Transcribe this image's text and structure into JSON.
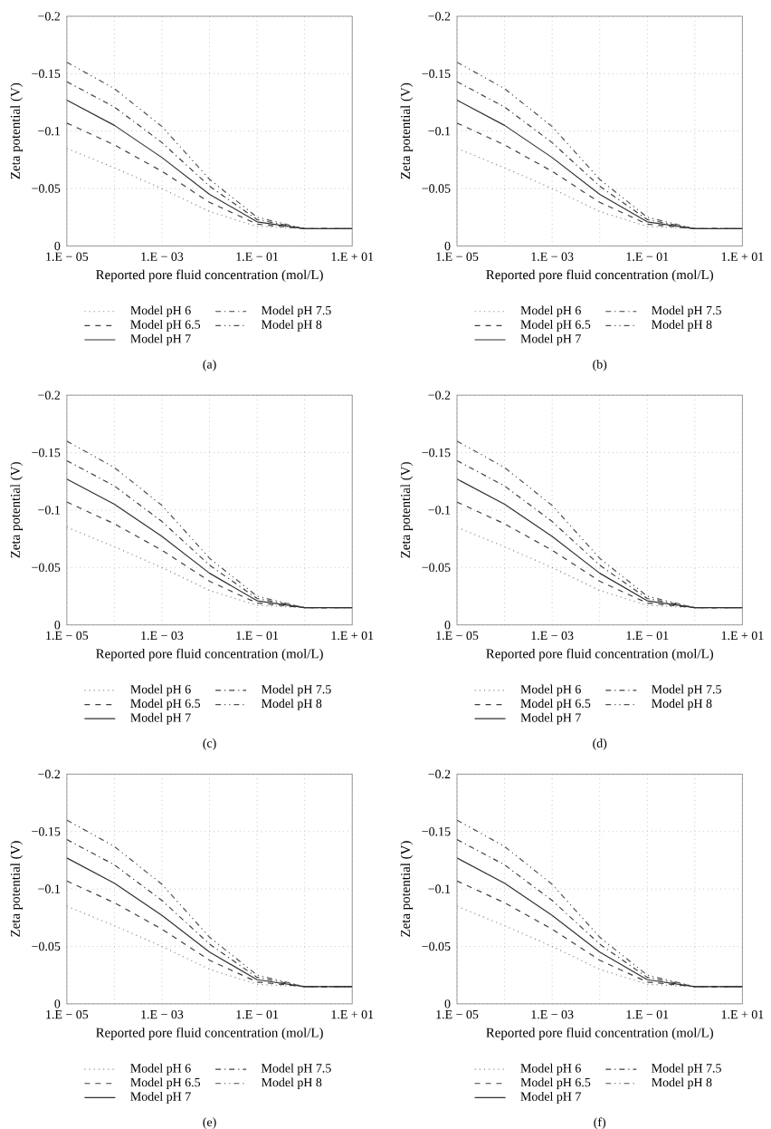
{
  "chart_data": [
    {
      "type": "line",
      "xlabel": "Reported pore fluid concentration (mol/L)",
      "ylabel": "Zeta potential (V)",
      "annotations": [
        "(a)"
      ],
      "grid": true,
      "legend": "bottom",
      "categories": [
        "1.E − 05",
        null,
        "1.E − 03",
        null,
        "1.E − 01",
        null,
        "1.E + 01"
      ],
      "ylim": [
        0,
        -0.2
      ],
      "yticks": [
        {
          "value": 0,
          "label": "0"
        },
        {
          "value": -0.05,
          "label": "−0.05"
        },
        {
          "value": -0.1,
          "label": "−0.1"
        },
        {
          "value": -0.15,
          "label": "−0.15"
        },
        {
          "value": -0.2,
          "label": "−0.2"
        }
      ],
      "series": [
        {
          "name": "Model pH 6",
          "color": "#8c8c8c",
          "line_style": "dotted",
          "values": [
            -0.085,
            -0.068,
            -0.05,
            -0.03,
            -0.017,
            -0.015,
            -0.015
          ]
        },
        {
          "name": "Model pH 6.5",
          "color": "#404040",
          "line_style": "dashed",
          "values": [
            -0.107,
            -0.088,
            -0.065,
            -0.038,
            -0.019,
            -0.015,
            -0.015
          ]
        },
        {
          "name": "Model pH 7",
          "color": "#303030",
          "line_style": "solid",
          "values": [
            -0.127,
            -0.105,
            -0.077,
            -0.045,
            -0.021,
            -0.015,
            -0.015
          ]
        },
        {
          "name": "Model pH 7.5",
          "color": "#404040",
          "line_style": "dashdot",
          "values": [
            -0.143,
            -0.121,
            -0.09,
            -0.052,
            -0.023,
            -0.015,
            -0.015
          ]
        },
        {
          "name": "Model pH 8",
          "color": "#505050",
          "line_style": "dashdotdot",
          "values": [
            -0.16,
            -0.137,
            -0.104,
            -0.058,
            -0.025,
            -0.015,
            -0.015
          ]
        }
      ]
    },
    {
      "type": "line",
      "xlabel": "Reported pore fluid concentration (mol/L)",
      "ylabel": "Zeta potential (V)",
      "annotations": [
        "(b)"
      ],
      "grid": true,
      "legend": "bottom",
      "categories": [
        "1.E − 05",
        null,
        "1.E − 03",
        null,
        "1.E − 01",
        null,
        "1.E + 01"
      ],
      "ylim": [
        0,
        -0.2
      ],
      "yticks": [
        {
          "value": 0,
          "label": "0"
        },
        {
          "value": -0.05,
          "label": "−0.05"
        },
        {
          "value": -0.1,
          "label": "−0.1"
        },
        {
          "value": -0.15,
          "label": "−0.15"
        },
        {
          "value": -0.2,
          "label": "−0.2"
        }
      ],
      "series": [
        {
          "name": "Model pH 6",
          "color": "#8c8c8c",
          "line_style": "dotted",
          "values": [
            -0.085,
            -0.068,
            -0.05,
            -0.03,
            -0.017,
            -0.015,
            -0.015
          ]
        },
        {
          "name": "Model pH 6.5",
          "color": "#404040",
          "line_style": "dashed",
          "values": [
            -0.107,
            -0.088,
            -0.065,
            -0.038,
            -0.019,
            -0.015,
            -0.015
          ]
        },
        {
          "name": "Model pH 7",
          "color": "#303030",
          "line_style": "solid",
          "values": [
            -0.127,
            -0.105,
            -0.077,
            -0.045,
            -0.021,
            -0.015,
            -0.015
          ]
        },
        {
          "name": "Model pH 7.5",
          "color": "#404040",
          "line_style": "dashdot",
          "values": [
            -0.143,
            -0.121,
            -0.09,
            -0.052,
            -0.023,
            -0.015,
            -0.015
          ]
        },
        {
          "name": "Model pH 8",
          "color": "#505050",
          "line_style": "dashdotdot",
          "values": [
            -0.16,
            -0.137,
            -0.104,
            -0.058,
            -0.025,
            -0.015,
            -0.015
          ]
        }
      ]
    },
    {
      "type": "line",
      "xlabel": "Reported pore fluid concentration (mol/L)",
      "ylabel": "Zeta potential (V)",
      "annotations": [
        "(c)"
      ],
      "grid": true,
      "legend": "bottom",
      "categories": [
        "1.E − 05",
        null,
        "1.E − 03",
        null,
        "1.E − 01",
        null,
        "1.E + 01"
      ],
      "ylim": [
        0,
        -0.2
      ],
      "yticks": [
        {
          "value": 0,
          "label": "0"
        },
        {
          "value": -0.05,
          "label": "−0.05"
        },
        {
          "value": -0.1,
          "label": "−0.1"
        },
        {
          "value": -0.15,
          "label": "−0.15"
        },
        {
          "value": -0.2,
          "label": "−0.2"
        }
      ],
      "series": [
        {
          "name": "Model pH 6",
          "color": "#8c8c8c",
          "line_style": "dotted",
          "values": [
            -0.085,
            -0.068,
            -0.05,
            -0.03,
            -0.017,
            -0.015,
            -0.015
          ]
        },
        {
          "name": "Model pH 6.5",
          "color": "#404040",
          "line_style": "dashed",
          "values": [
            -0.107,
            -0.088,
            -0.065,
            -0.038,
            -0.019,
            -0.015,
            -0.015
          ]
        },
        {
          "name": "Model pH 7",
          "color": "#303030",
          "line_style": "solid",
          "values": [
            -0.127,
            -0.105,
            -0.077,
            -0.045,
            -0.021,
            -0.015,
            -0.015
          ]
        },
        {
          "name": "Model pH 7.5",
          "color": "#404040",
          "line_style": "dashdot",
          "values": [
            -0.143,
            -0.121,
            -0.09,
            -0.052,
            -0.023,
            -0.015,
            -0.015
          ]
        },
        {
          "name": "Model pH 8",
          "color": "#505050",
          "line_style": "dashdotdot",
          "values": [
            -0.16,
            -0.137,
            -0.104,
            -0.058,
            -0.025,
            -0.015,
            -0.015
          ]
        }
      ]
    },
    {
      "type": "line",
      "xlabel": "Reported pore fluid concentration (mol/L)",
      "ylabel": "Zeta potential (V)",
      "annotations": [
        "(d)"
      ],
      "grid": true,
      "legend": "bottom",
      "categories": [
        "1.E − 05",
        null,
        "1.E − 03",
        null,
        "1.E − 01",
        null,
        "1.E + 01"
      ],
      "ylim": [
        0,
        -0.2
      ],
      "yticks": [
        {
          "value": 0,
          "label": "0"
        },
        {
          "value": -0.05,
          "label": "−0.05"
        },
        {
          "value": -0.1,
          "label": "−0.1"
        },
        {
          "value": -0.15,
          "label": "−0.15"
        },
        {
          "value": -0.2,
          "label": "−0.2"
        }
      ],
      "series": [
        {
          "name": "Model pH 6",
          "color": "#8c8c8c",
          "line_style": "dotted",
          "values": [
            -0.085,
            -0.068,
            -0.05,
            -0.03,
            -0.017,
            -0.015,
            -0.015
          ]
        },
        {
          "name": "Model pH 6.5",
          "color": "#404040",
          "line_style": "dashed",
          "values": [
            -0.107,
            -0.088,
            -0.065,
            -0.038,
            -0.019,
            -0.015,
            -0.015
          ]
        },
        {
          "name": "Model pH 7",
          "color": "#303030",
          "line_style": "solid",
          "values": [
            -0.127,
            -0.105,
            -0.077,
            -0.045,
            -0.021,
            -0.015,
            -0.015
          ]
        },
        {
          "name": "Model pH 7.5",
          "color": "#404040",
          "line_style": "dashdot",
          "values": [
            -0.143,
            -0.121,
            -0.09,
            -0.052,
            -0.023,
            -0.015,
            -0.015
          ]
        },
        {
          "name": "Model pH 8",
          "color": "#505050",
          "line_style": "dashdotdot",
          "values": [
            -0.16,
            -0.137,
            -0.104,
            -0.058,
            -0.025,
            -0.015,
            -0.015
          ]
        }
      ]
    },
    {
      "type": "line",
      "xlabel": "Reported pore fluid concentration (mol/L)",
      "ylabel": "Zeta potential (V)",
      "annotations": [
        "(e)"
      ],
      "grid": true,
      "legend": "bottom",
      "categories": [
        "1.E − 05",
        null,
        "1.E − 03",
        null,
        "1.E − 01",
        null,
        "1.E + 01"
      ],
      "ylim": [
        0,
        -0.2
      ],
      "yticks": [
        {
          "value": 0,
          "label": "0"
        },
        {
          "value": -0.05,
          "label": "−0.05"
        },
        {
          "value": -0.1,
          "label": "−0.1"
        },
        {
          "value": -0.15,
          "label": "−0.15"
        },
        {
          "value": -0.2,
          "label": "−0.2"
        }
      ],
      "series": [
        {
          "name": "Model pH 6",
          "color": "#8c8c8c",
          "line_style": "dotted",
          "values": [
            -0.085,
            -0.068,
            -0.05,
            -0.03,
            -0.017,
            -0.015,
            -0.015
          ]
        },
        {
          "name": "Model pH 6.5",
          "color": "#404040",
          "line_style": "dashed",
          "values": [
            -0.107,
            -0.088,
            -0.065,
            -0.038,
            -0.019,
            -0.015,
            -0.015
          ]
        },
        {
          "name": "Model pH 7",
          "color": "#303030",
          "line_style": "solid",
          "values": [
            -0.127,
            -0.105,
            -0.077,
            -0.045,
            -0.021,
            -0.015,
            -0.015
          ]
        },
        {
          "name": "Model pH 7.5",
          "color": "#404040",
          "line_style": "dashdot",
          "values": [
            -0.143,
            -0.121,
            -0.09,
            -0.052,
            -0.023,
            -0.015,
            -0.015
          ]
        },
        {
          "name": "Model pH 8",
          "color": "#505050",
          "line_style": "dashdotdot",
          "values": [
            -0.16,
            -0.137,
            -0.104,
            -0.058,
            -0.025,
            -0.015,
            -0.015
          ]
        }
      ]
    },
    {
      "type": "line",
      "xlabel": "Reported pore fluid concentration (mol/L)",
      "ylabel": "Zeta potential (V)",
      "annotations": [
        "(f)"
      ],
      "grid": true,
      "legend": "bottom",
      "categories": [
        "1.E − 05",
        null,
        "1.E − 03",
        null,
        "1.E − 01",
        null,
        "1.E + 01"
      ],
      "ylim": [
        0,
        -0.2
      ],
      "yticks": [
        {
          "value": 0,
          "label": "0"
        },
        {
          "value": -0.05,
          "label": "−0.05"
        },
        {
          "value": -0.1,
          "label": "−0.1"
        },
        {
          "value": -0.15,
          "label": "−0.15"
        },
        {
          "value": -0.2,
          "label": "−0.2"
        }
      ],
      "series": [
        {
          "name": "Model pH 6",
          "color": "#8c8c8c",
          "line_style": "dotted",
          "values": [
            -0.085,
            -0.068,
            -0.05,
            -0.03,
            -0.017,
            -0.015,
            -0.015
          ]
        },
        {
          "name": "Model pH 6.5",
          "color": "#404040",
          "line_style": "dashed",
          "values": [
            -0.107,
            -0.088,
            -0.065,
            -0.038,
            -0.019,
            -0.015,
            -0.015
          ]
        },
        {
          "name": "Model pH 7",
          "color": "#303030",
          "line_style": "solid",
          "values": [
            -0.127,
            -0.105,
            -0.077,
            -0.045,
            -0.021,
            -0.015,
            -0.015
          ]
        },
        {
          "name": "Model pH 7.5",
          "color": "#404040",
          "line_style": "dashdot",
          "values": [
            -0.143,
            -0.121,
            -0.09,
            -0.052,
            -0.023,
            -0.015,
            -0.015
          ]
        },
        {
          "name": "Model pH 8",
          "color": "#505050",
          "line_style": "dashdotdot",
          "values": [
            -0.16,
            -0.137,
            -0.104,
            -0.058,
            -0.025,
            -0.015,
            -0.015
          ]
        }
      ]
    }
  ]
}
